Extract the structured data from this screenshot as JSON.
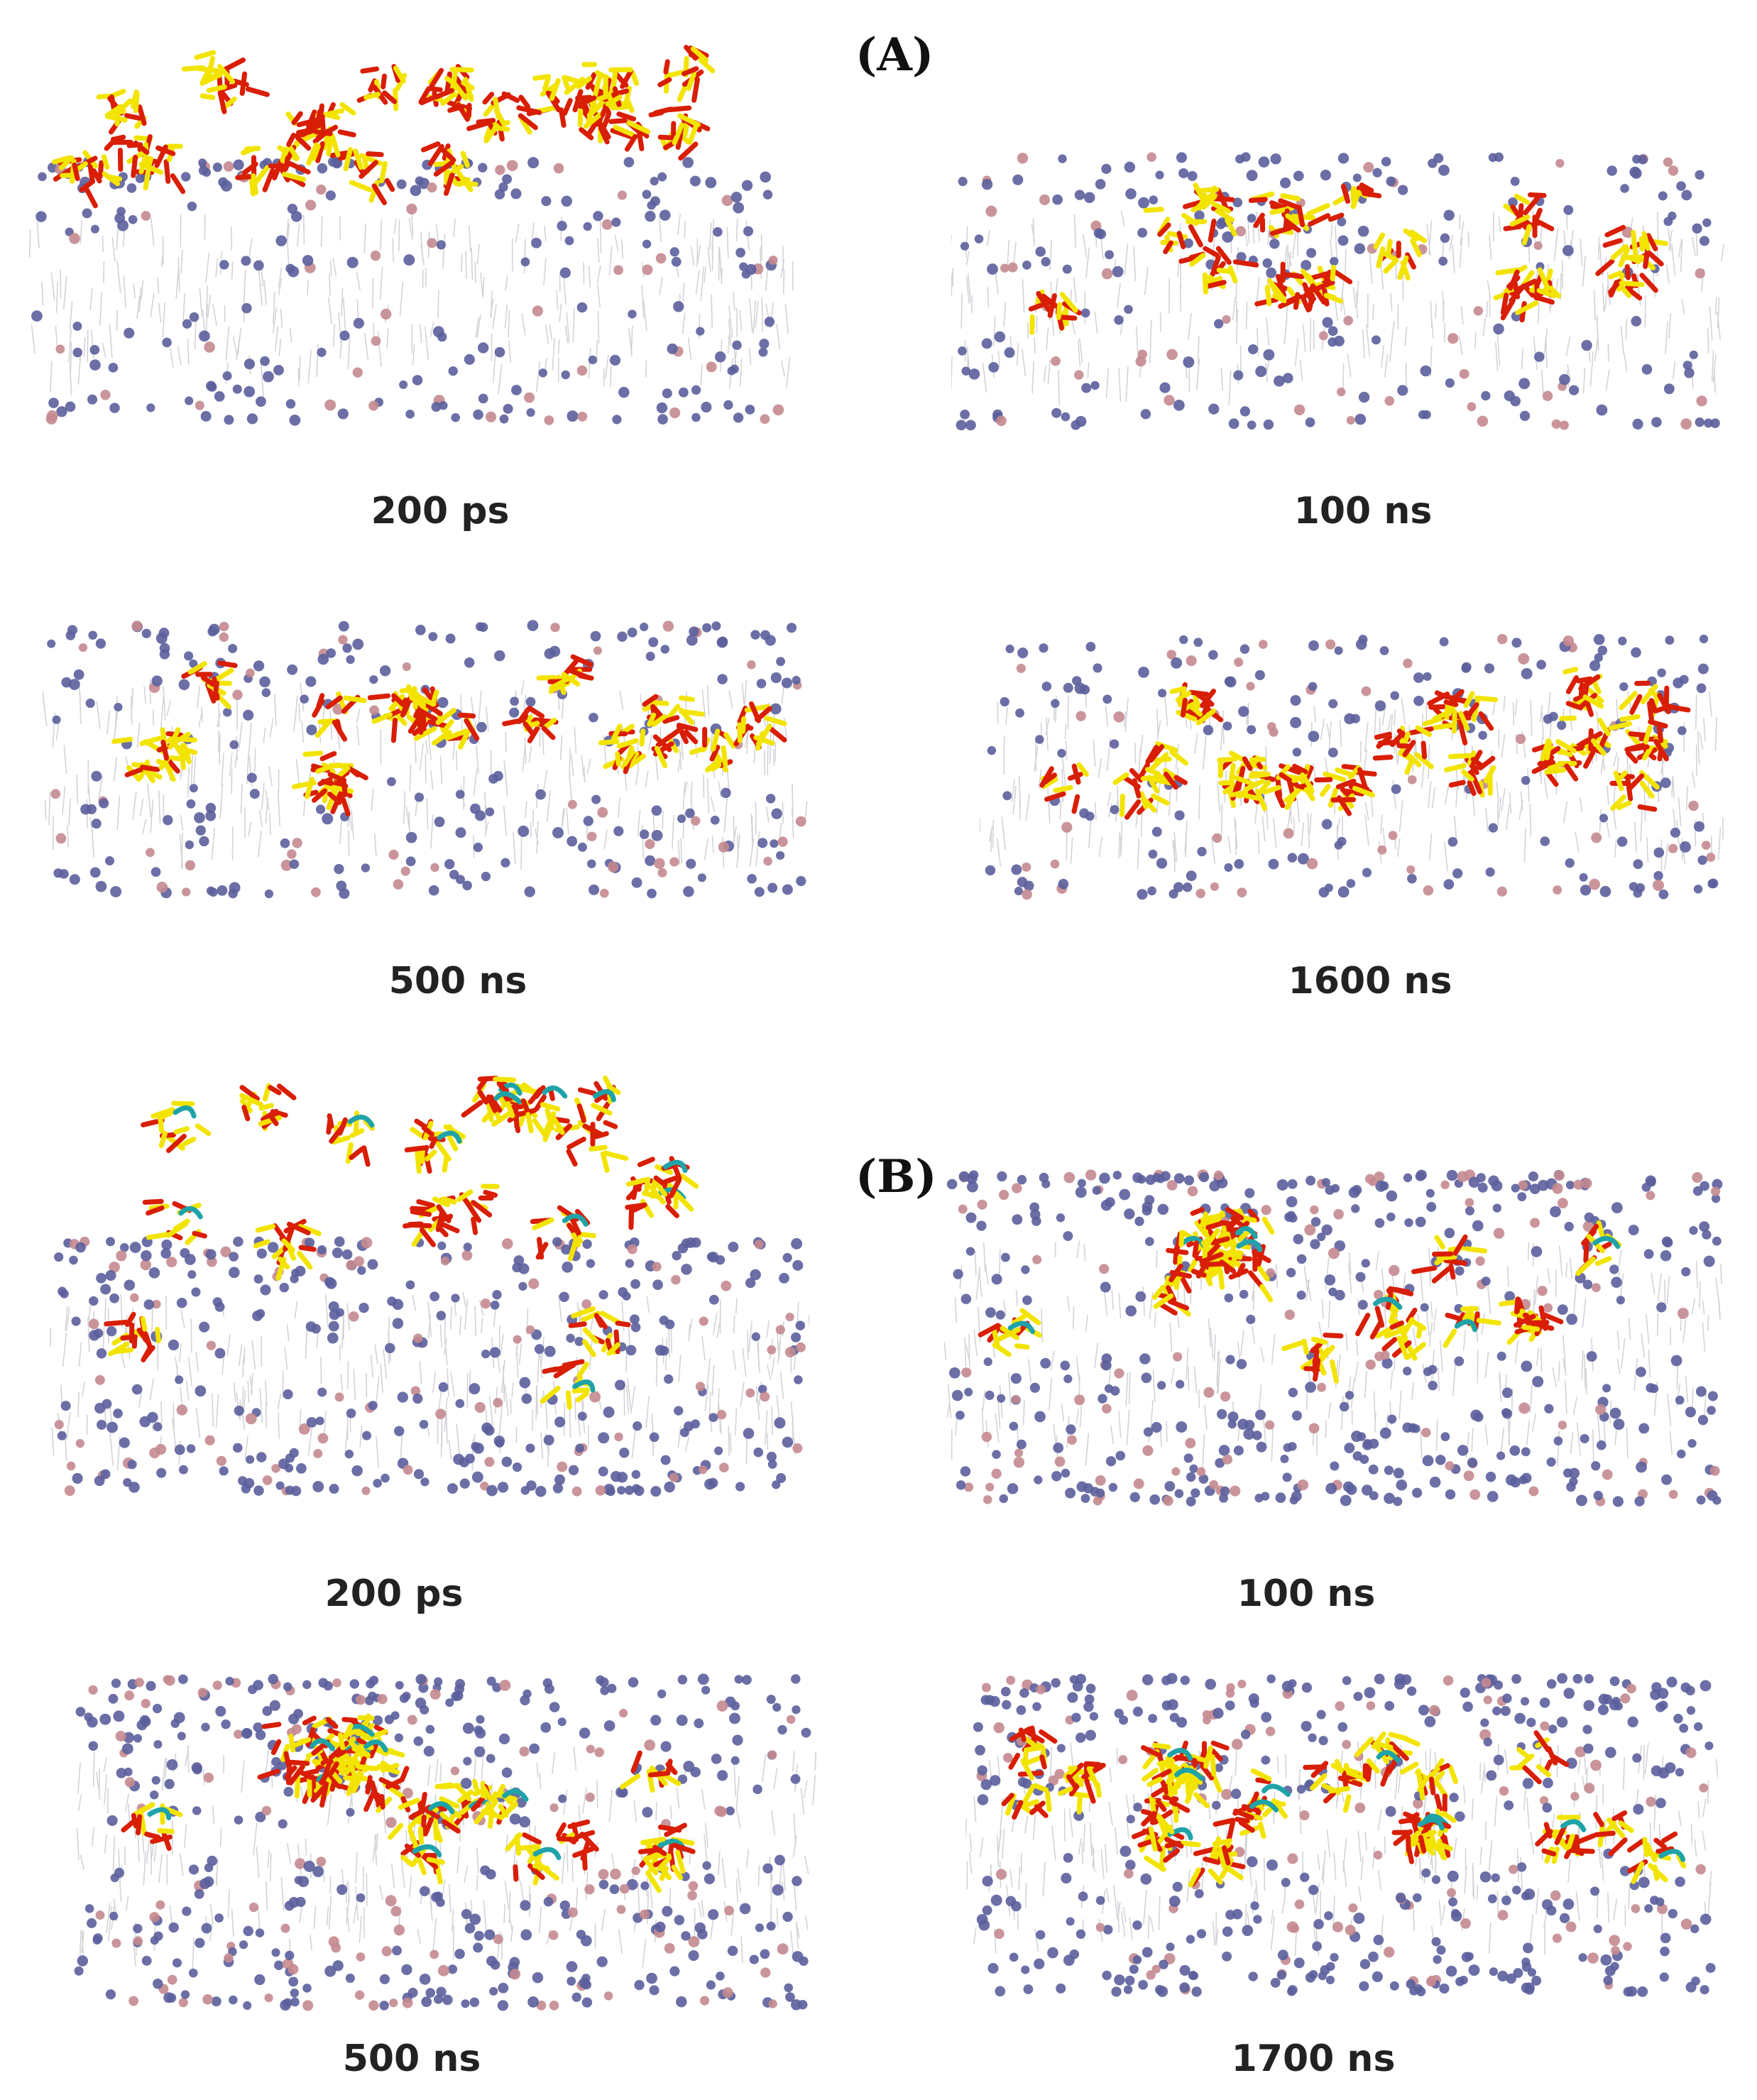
{
  "panel_labels": {
    "a": "(A)",
    "b": "(B)"
  },
  "captions": {
    "a1": "200 ps",
    "a2": "100 ns",
    "a3": "500 ns",
    "a4": "1600 ns",
    "b1": "200 ps",
    "b2": "100 ns",
    "b3": "500 ns",
    "b4": "1700 ns"
  },
  "colors": {
    "headgroup_blue": "#5b5f9c",
    "headgroup_pink": "#c48a8f",
    "tail_grey": "#9a9aa8",
    "molecule_red": "#d81e05",
    "molecule_yellow": "#f2e400",
    "molecule_cyan": "#1fa3a8"
  }
}
